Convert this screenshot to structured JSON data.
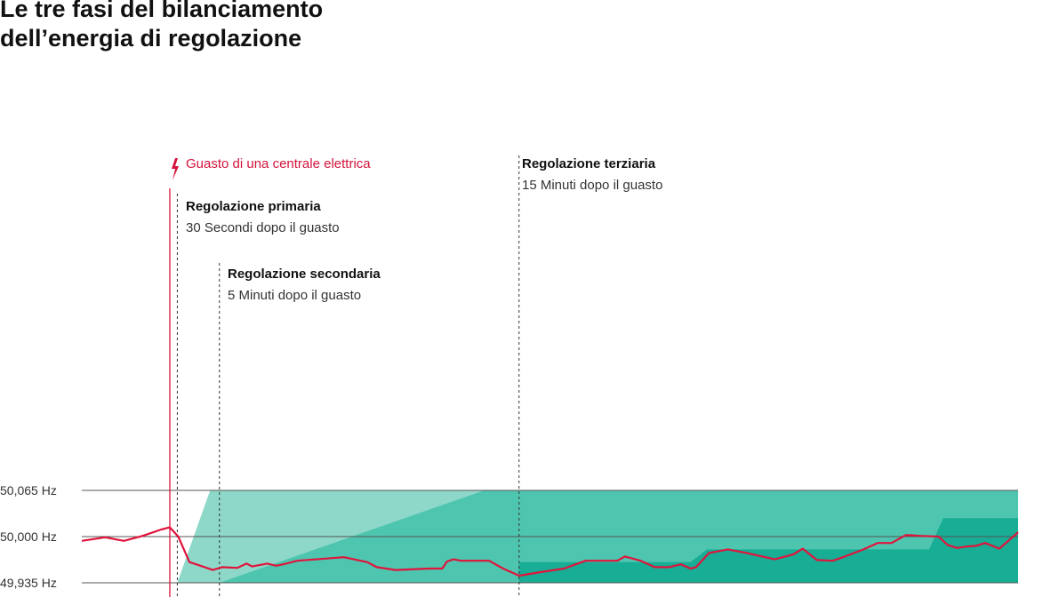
{
  "title": {
    "line1": "Le tre fasi del bilanciamento",
    "line2": "dell’energia di regolazione"
  },
  "colors": {
    "frequency_line": "#e0143c",
    "event_text": "#d4143c",
    "primary_band": "#8dd8c9",
    "secondary_band": "#4ec5af",
    "tertiary_band": "#18ad95",
    "grid": "#555555",
    "axis_text": "#333333",
    "heading_text": "#111111"
  },
  "chart_data": {
    "type": "area",
    "y_unit": "Hz",
    "y_ticks": [
      "50,065 Hz",
      "50,000 Hz",
      "49,935 Hz"
    ],
    "y_tick_values": [
      50.065,
      50.0,
      49.935
    ],
    "ylim": [
      49.935,
      50.065
    ],
    "xlim": [
      0,
      100
    ],
    "event": {
      "label": "Guasto di una centrale elettrica",
      "icon": "lightning-icon",
      "x": 9.4
    },
    "phases": [
      {
        "key": "primary",
        "title": "Regolazione primaria",
        "subtitle": "30 Secondi dopo il guasto",
        "x": 10.2
      },
      {
        "key": "secondary",
        "title": "Regolazione secondaria",
        "subtitle": "5 Minuti dopo il guasto",
        "x": 14.7
      },
      {
        "key": "tertiary",
        "title": "Regolazione terziaria",
        "subtitle": "15 Minuti dopo il guasto",
        "x": 46.7
      }
    ],
    "bands": [
      {
        "key": "primary",
        "points": [
          [
            10.2,
            49.935
          ],
          [
            13.7,
            50.065
          ],
          [
            100,
            50.065
          ],
          [
            100,
            49.935
          ]
        ]
      },
      {
        "key": "secondary",
        "points": [
          [
            14.7,
            49.935
          ],
          [
            43.0,
            50.065
          ],
          [
            100,
            50.065
          ],
          [
            100,
            49.935
          ]
        ]
      },
      {
        "key": "tertiary",
        "points": [
          [
            46.7,
            49.935
          ],
          [
            46.7,
            49.964
          ],
          [
            65.0,
            49.964
          ],
          [
            66.8,
            49.982
          ],
          [
            90.5,
            49.982
          ],
          [
            92.0,
            50.026
          ],
          [
            100,
            50.026
          ],
          [
            100,
            49.935
          ]
        ]
      }
    ],
    "frequency_series": {
      "x": [
        0,
        2.5,
        4.5,
        6.5,
        8.5,
        9.4,
        10.3,
        11.5,
        12.0,
        14.0,
        15.0,
        16.6,
        17.6,
        18.2,
        19.8,
        20.8,
        21.8,
        23.0,
        28.0,
        30.5,
        31.5,
        33.5,
        37.0,
        38.5,
        39.0,
        39.7,
        40.5,
        43.5,
        45.0,
        46.7,
        49.0,
        51.5,
        53.8,
        55.7,
        57.2,
        58.0,
        59.7,
        61.2,
        62.7,
        64.0,
        65.0,
        65.6,
        67.0,
        69.0,
        71.0,
        73.0,
        74.0,
        76.0,
        77.0,
        78.5,
        80.2,
        81.5,
        83.5,
        85.0,
        86.5,
        88.0,
        88.5,
        89.5,
        91.5,
        92.5,
        93.5,
        94.5,
        95.5,
        96.5,
        98.0,
        100
      ],
      "y": [
        49.994,
        49.999,
        49.994,
        50.001,
        50.01,
        50.013,
        50.0,
        49.964,
        49.962,
        49.953,
        49.957,
        49.956,
        49.962,
        49.958,
        49.962,
        49.959,
        49.962,
        49.966,
        49.971,
        49.964,
        49.957,
        49.953,
        49.955,
        49.955,
        49.965,
        49.968,
        49.966,
        49.966,
        49.955,
        49.945,
        49.95,
        49.955,
        49.966,
        49.966,
        49.966,
        49.972,
        49.966,
        49.957,
        49.957,
        49.961,
        49.955,
        49.957,
        49.977,
        49.982,
        49.977,
        49.971,
        49.968,
        49.975,
        49.983,
        49.967,
        49.966,
        49.972,
        49.982,
        49.991,
        49.991,
        50.002,
        50.002,
        50.001,
        50.0,
        49.988,
        49.984,
        49.986,
        49.987,
        49.991,
        49.983,
        50.006
      ]
    }
  }
}
